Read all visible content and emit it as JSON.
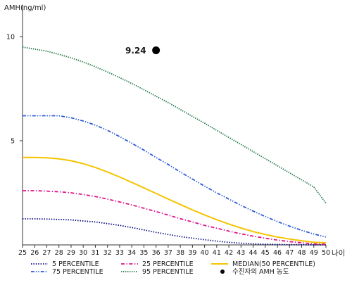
{
  "chart_data": {
    "type": "line",
    "ylabel": "AMH(ng/ml)",
    "xlabel": "나이",
    "xlim": [
      25,
      50
    ],
    "ylim": [
      0,
      11
    ],
    "yticks": [
      5,
      10
    ],
    "x": [
      25,
      26,
      27,
      28,
      29,
      30,
      31,
      32,
      33,
      34,
      35,
      36,
      37,
      38,
      39,
      40,
      41,
      42,
      43,
      44,
      45,
      46,
      47,
      48,
      49,
      50
    ],
    "series": [
      {
        "name": "5 PERCENTILE",
        "color": "#000080",
        "dash": "dotted",
        "values": [
          1.25,
          1.25,
          1.24,
          1.22,
          1.2,
          1.15,
          1.1,
          1.02,
          0.94,
          0.83,
          0.72,
          0.6,
          0.5,
          0.4,
          0.32,
          0.25,
          0.18,
          0.12,
          0.08,
          0.05,
          0.03,
          0.02,
          0.01,
          0.01,
          0.0,
          0.0
        ]
      },
      {
        "name": "25 PERCENTILE",
        "color": "#e0138a",
        "dash": "dashdot",
        "values": [
          2.6,
          2.6,
          2.58,
          2.55,
          2.5,
          2.42,
          2.32,
          2.2,
          2.06,
          1.92,
          1.76,
          1.6,
          1.43,
          1.26,
          1.1,
          0.94,
          0.8,
          0.66,
          0.53,
          0.42,
          0.32,
          0.23,
          0.16,
          0.1,
          0.05,
          0.03
        ]
      },
      {
        "name": "MEDIAN(50 PERCENTILE)",
        "color": "#f5c400",
        "dash": "solid",
        "values": [
          4.2,
          4.2,
          4.18,
          4.13,
          4.04,
          3.9,
          3.72,
          3.5,
          3.26,
          3.0,
          2.74,
          2.47,
          2.2,
          1.94,
          1.68,
          1.44,
          1.21,
          1.0,
          0.81,
          0.64,
          0.5,
          0.38,
          0.28,
          0.2,
          0.13,
          0.1
        ]
      },
      {
        "name": "75 PERCENTILE",
        "color": "#2e5bd6",
        "dash": "dashdotdot",
        "values": [
          6.2,
          6.2,
          6.2,
          6.2,
          6.1,
          5.95,
          5.75,
          5.5,
          5.2,
          4.88,
          4.55,
          4.2,
          3.86,
          3.5,
          3.16,
          2.82,
          2.5,
          2.2,
          1.9,
          1.62,
          1.36,
          1.12,
          0.9,
          0.7,
          0.52,
          0.38
        ]
      },
      {
        "name": "95 PERCENTILE",
        "color": "#1f7a45",
        "dash": "dense-dot",
        "values": [
          9.5,
          9.4,
          9.3,
          9.15,
          8.98,
          8.78,
          8.55,
          8.3,
          8.03,
          7.75,
          7.45,
          7.14,
          6.83,
          6.5,
          6.17,
          5.84,
          5.5,
          5.16,
          4.82,
          4.48,
          4.14,
          3.8,
          3.46,
          3.12,
          2.78,
          2.0
        ]
      }
    ],
    "point": {
      "name": "수진자의 AMH 농도",
      "x": 36,
      "y": 9.24,
      "label": "9.24",
      "color": "#000000"
    },
    "legend": {
      "position": "bottom",
      "items": [
        {
          "label": "5 PERCENTILE",
          "color": "#000080",
          "dash": "dotted",
          "kind": "line"
        },
        {
          "label": "25 PERCENTILE",
          "color": "#e0138a",
          "dash": "dashdot",
          "kind": "line"
        },
        {
          "label": "MEDIAN(50 PERCENTILE)",
          "color": "#f5c400",
          "dash": "solid",
          "kind": "line"
        },
        {
          "label": "75 PERCENTILE",
          "color": "#2e5bd6",
          "dash": "dashdotdot",
          "kind": "line"
        },
        {
          "label": "95 PERCENTILE",
          "color": "#1f7a45",
          "dash": "dense-dot",
          "kind": "line"
        },
        {
          "label": "수진자의 AMH 농도",
          "color": "#000000",
          "kind": "dot"
        }
      ]
    },
    "grid": false
  }
}
